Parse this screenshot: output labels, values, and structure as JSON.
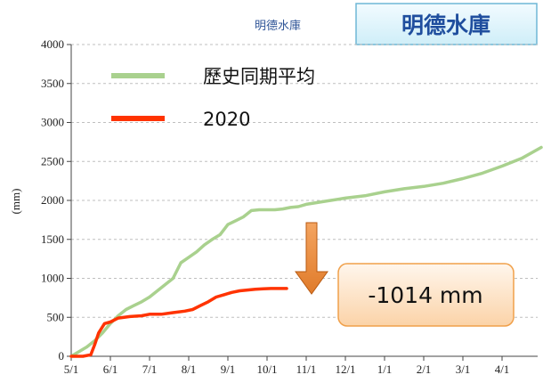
{
  "chart_data": {
    "type": "line",
    "title": "明德水庫",
    "badge": "明德水庫",
    "ylabel": "(mm)",
    "xlabel": "",
    "ylim": [
      0,
      4000
    ],
    "yticks": [
      0,
      500,
      1000,
      1500,
      2000,
      2500,
      3000,
      3500,
      4000
    ],
    "x_ticks": [
      "5/1",
      "6/1",
      "7/1",
      "8/1",
      "9/1",
      "10/1",
      "11/1",
      "12/1",
      "1/1",
      "2/1",
      "3/1",
      "4/1"
    ],
    "grid": "horizontal-dashed",
    "legend": "top-left",
    "series": [
      {
        "name": "歷史同期平均",
        "color": "#a9d18e",
        "x": [
          0,
          0.2,
          0.4,
          0.6,
          0.8,
          1.0,
          1.2,
          1.4,
          1.6,
          1.8,
          2.0,
          2.2,
          2.4,
          2.6,
          2.8,
          3.0,
          3.2,
          3.4,
          3.6,
          3.8,
          4.0,
          4.2,
          4.4,
          4.6,
          4.8,
          5.0,
          5.2,
          5.4,
          5.6,
          5.8,
          6.0,
          6.5,
          7.0,
          7.5,
          8.0,
          8.5,
          9.0,
          9.5,
          10.0,
          10.5,
          11.0,
          11.5,
          12.0
        ],
        "values": [
          0,
          60,
          120,
          200,
          300,
          420,
          520,
          600,
          650,
          700,
          760,
          840,
          920,
          1000,
          1200,
          1270,
          1340,
          1430,
          1500,
          1560,
          1690,
          1740,
          1790,
          1870,
          1880,
          1880,
          1880,
          1890,
          1910,
          1920,
          1950,
          1990,
          2030,
          2060,
          2110,
          2150,
          2180,
          2220,
          2280,
          2350,
          2440,
          2540,
          2680
        ]
      },
      {
        "name": "2020",
        "color": "#ff3300",
        "x": [
          0,
          0.3,
          0.5,
          0.6,
          0.7,
          0.85,
          1.0,
          1.2,
          1.5,
          1.8,
          2.0,
          2.3,
          2.6,
          2.9,
          3.1,
          3.3,
          3.5,
          3.7,
          3.9,
          4.1,
          4.3,
          4.5,
          4.7,
          4.9,
          5.1,
          5.3,
          5.5
        ],
        "values": [
          0,
          0,
          20,
          150,
          300,
          420,
          440,
          490,
          510,
          520,
          540,
          540,
          560,
          580,
          600,
          650,
          700,
          760,
          790,
          820,
          840,
          850,
          860,
          865,
          870,
          870,
          870
        ]
      }
    ],
    "annotation": {
      "text": "-1014 mm",
      "arrow": "down"
    }
  }
}
